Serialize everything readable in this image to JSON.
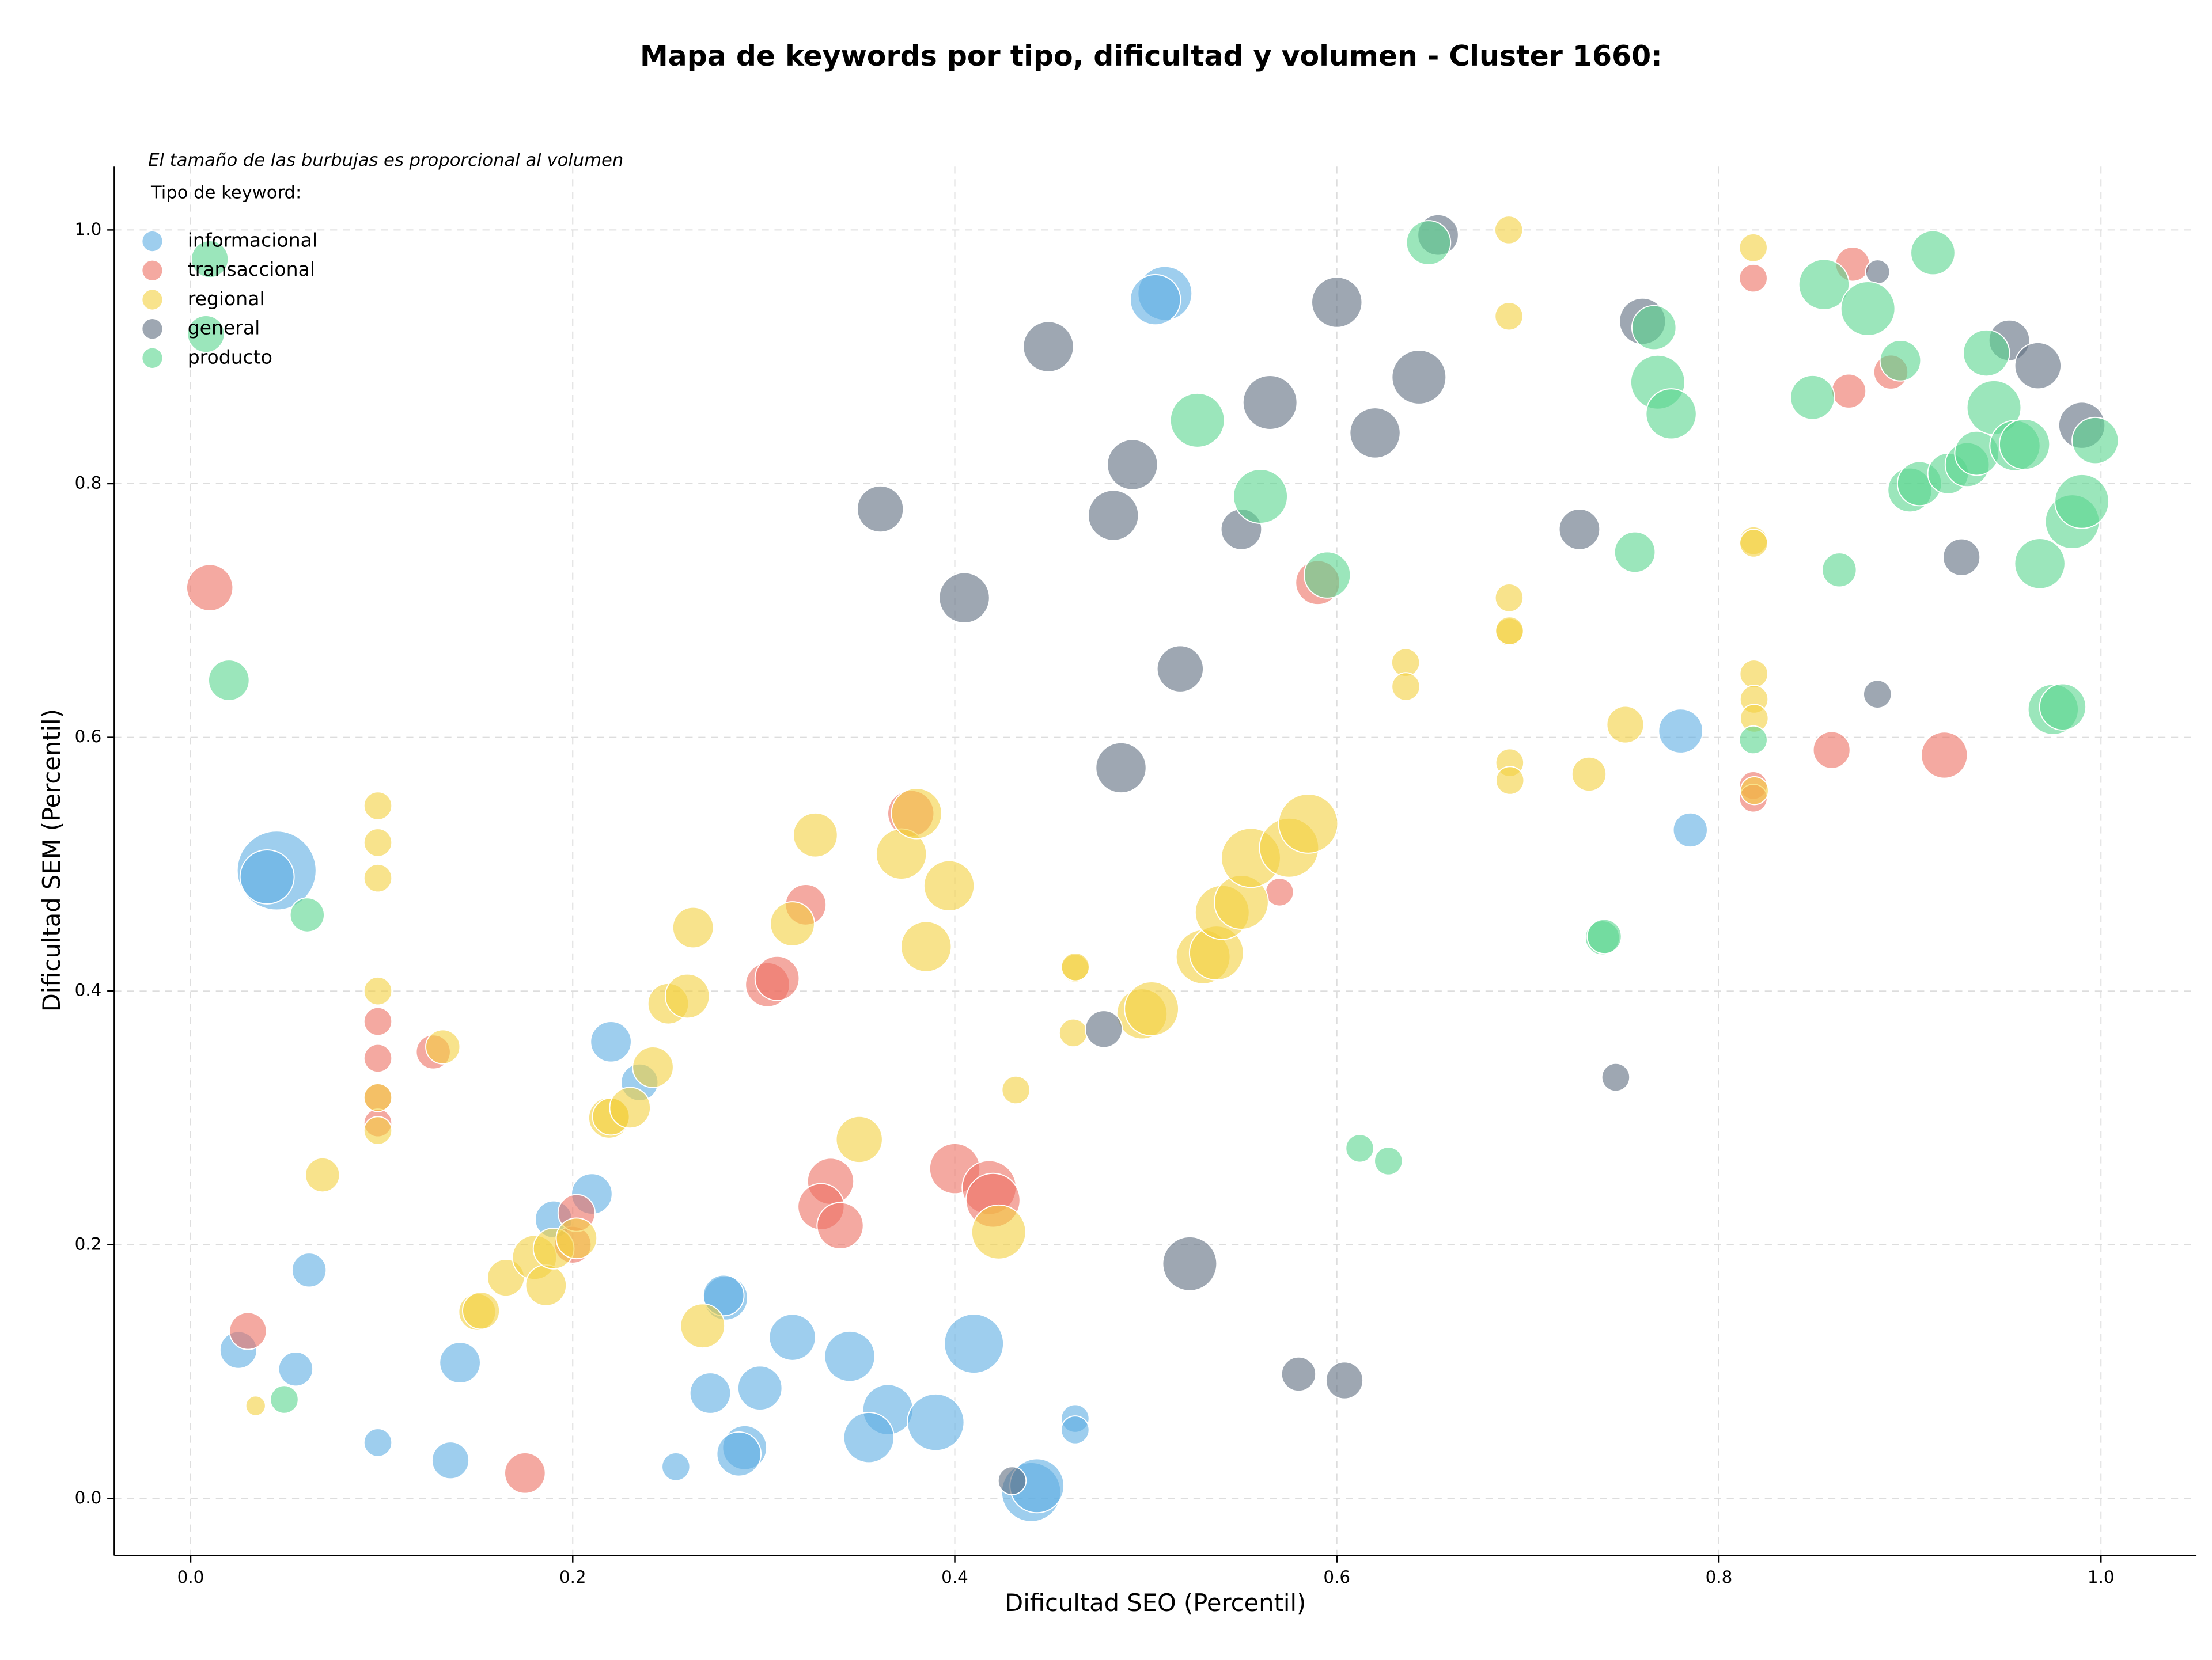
{
  "chart_data": {
    "type": "scatter",
    "title": "Mapa de keywords por tipo, dificultad y volumen - Cluster 1660:",
    "annotation": "El tamaño de las burbujas es proporcional al volumen",
    "legend_title": "Tipo de keyword:",
    "legend_position": "upper left",
    "xlabel": "Dificultad SEO (Percentil)",
    "ylabel": "Dificultad SEM (Percentil)",
    "xlim": [
      -0.04,
      1.05
    ],
    "ylim": [
      -0.045,
      1.05
    ],
    "xticks": [
      {
        "value": 0,
        "label": "0.0"
      },
      0.2,
      0.4,
      0.6,
      0.8,
      {
        "value": 1,
        "label": "1.0"
      }
    ],
    "yticks": [
      {
        "value": 0,
        "label": "0.0"
      },
      0.2,
      0.4,
      0.6,
      0.8,
      {
        "value": 1,
        "label": "1.0"
      }
    ],
    "grid": true,
    "series": [
      {
        "name": "informacional",
        "color": "#5dade2",
        "x": [
          0.045,
          0.04,
          0.51,
          0.505,
          0.78,
          0.785,
          0.22,
          0.235,
          0.21,
          0.19,
          0.062,
          0.025,
          0.055,
          0.141,
          0.098,
          0.136,
          0.254,
          0.28,
          0.279,
          0.315,
          0.345,
          0.41,
          0.272,
          0.298,
          0.29,
          0.287,
          0.365,
          0.355,
          0.39,
          0.44,
          0.443,
          0.463,
          0.463
        ],
        "y": [
          0.495,
          0.49,
          0.95,
          0.945,
          0.605,
          0.527,
          0.36,
          0.328,
          0.24,
          0.22,
          0.18,
          0.117,
          0.102,
          0.107,
          0.044,
          0.03,
          0.025,
          0.158,
          0.16,
          0.127,
          0.112,
          0.122,
          0.083,
          0.087,
          0.04,
          0.035,
          0.07,
          0.048,
          0.06,
          0.005,
          0.01,
          0.063,
          0.054
        ],
        "sizes": [
          64,
          30,
          30,
          26,
          20,
          12,
          17,
          14,
          17,
          14,
          12,
          14,
          12,
          17,
          8,
          14,
          8,
          20,
          17,
          22,
          26,
          36,
          17,
          20,
          20,
          20,
          26,
          26,
          33,
          36,
          30,
          8,
          8
        ]
      },
      {
        "name": "transaccional",
        "color": "#ec7063",
        "x": [
          0.01,
          0.03,
          0.098,
          0.098,
          0.098,
          0.098,
          0.127,
          0.175,
          0.2,
          0.202,
          0.302,
          0.307,
          0.322,
          0.377,
          0.335,
          0.33,
          0.34,
          0.4,
          0.418,
          0.42,
          0.57,
          0.59,
          0.818,
          0.818,
          0.818,
          0.859,
          0.918,
          0.87,
          0.868,
          0.89
        ],
        "y": [
          0.718,
          0.132,
          0.376,
          0.347,
          0.316,
          0.296,
          0.352,
          0.02,
          0.2,
          0.225,
          0.405,
          0.41,
          0.468,
          0.54,
          0.25,
          0.23,
          0.215,
          0.26,
          0.245,
          0.235,
          0.478,
          0.722,
          0.962,
          0.562,
          0.552,
          0.59,
          0.586,
          0.973,
          0.873,
          0.888
        ],
        "sizes": [
          22,
          14,
          8,
          8,
          8,
          8,
          12,
          17,
          14,
          14,
          20,
          20,
          17,
          22,
          22,
          22,
          22,
          26,
          30,
          30,
          8,
          20,
          8,
          8,
          8,
          14,
          22,
          12,
          12,
          12
        ]
      },
      {
        "name": "regional",
        "color": "#f4d03f",
        "x": [
          0.034,
          0.069,
          0.098,
          0.098,
          0.098,
          0.098,
          0.098,
          0.098,
          0.132,
          0.15,
          0.152,
          0.165,
          0.18,
          0.186,
          0.19,
          0.202,
          0.219,
          0.22,
          0.23,
          0.242,
          0.25,
          0.26,
          0.263,
          0.268,
          0.315,
          0.327,
          0.35,
          0.372,
          0.38,
          0.385,
          0.397,
          0.423,
          0.432,
          0.462,
          0.463,
          0.4631,
          0.498,
          0.503,
          0.53,
          0.537,
          0.54,
          0.55,
          0.555,
          0.575,
          0.585,
          0.636,
          0.6361,
          0.69,
          0.6901,
          0.6902,
          0.6903,
          0.6904,
          0.6905,
          0.6906,
          0.732,
          0.751,
          0.818,
          0.8181,
          0.8182,
          0.8183,
          0.8184,
          0.8185,
          0.8186
        ],
        "y": [
          0.073,
          0.255,
          0.546,
          0.517,
          0.489,
          0.4,
          0.316,
          0.29,
          0.356,
          0.147,
          0.148,
          0.174,
          0.19,
          0.168,
          0.197,
          0.205,
          0.3,
          0.301,
          0.308,
          0.34,
          0.39,
          0.396,
          0.45,
          0.136,
          0.453,
          0.523,
          0.283,
          0.508,
          0.54,
          0.435,
          0.483,
          0.21,
          0.322,
          0.367,
          0.418,
          0.419,
          0.382,
          0.386,
          0.427,
          0.43,
          0.462,
          0.47,
          0.505,
          0.513,
          0.532,
          0.659,
          0.64,
          1.0,
          0.932,
          0.71,
          0.683,
          0.684,
          0.58,
          0.566,
          0.571,
          0.61,
          0.986,
          0.755,
          0.753,
          0.65,
          0.63,
          0.615,
          0.558
        ],
        "sizes": [
          4,
          12,
          8,
          8,
          8,
          8,
          8,
          8,
          12,
          14,
          14,
          14,
          20,
          17,
          17,
          17,
          17,
          14,
          17,
          17,
          17,
          20,
          17,
          20,
          20,
          20,
          22,
          26,
          26,
          26,
          26,
          30,
          8,
          8,
          8,
          8,
          26,
          30,
          30,
          30,
          30,
          30,
          36,
          36,
          36,
          8,
          8,
          8,
          8,
          8,
          8,
          8,
          8,
          8,
          12,
          14,
          8,
          8,
          8,
          8,
          8,
          8,
          8
        ]
      },
      {
        "name": "general",
        "color": "#5d6d7e",
        "x": [
          0.361,
          0.405,
          0.449,
          0.483,
          0.493,
          0.487,
          0.518,
          0.55,
          0.565,
          0.6,
          0.62,
          0.643,
          0.653,
          0.478,
          0.523,
          0.58,
          0.604,
          0.43,
          0.727,
          0.746,
          0.76,
          0.883,
          0.8831,
          0.927,
          0.952,
          0.967,
          0.99
        ],
        "y": [
          0.78,
          0.71,
          0.908,
          0.775,
          0.815,
          0.576,
          0.654,
          0.764,
          0.864,
          0.943,
          0.84,
          0.884,
          0.996,
          0.37,
          0.185,
          0.098,
          0.093,
          0.014,
          0.764,
          0.332,
          0.928,
          0.634,
          0.967,
          0.742,
          0.913,
          0.893,
          0.846
        ],
        "sizes": [
          22,
          26,
          26,
          26,
          26,
          26,
          22,
          17,
          30,
          26,
          26,
          30,
          17,
          14,
          30,
          12,
          14,
          8,
          17,
          8,
          22,
          8,
          6,
          14,
          17,
          22,
          22
        ]
      },
      {
        "name": "producto",
        "color": "#58d68d",
        "x": [
          0.01,
          0.008,
          0.02,
          0.061,
          0.049,
          0.527,
          0.56,
          0.595,
          0.648,
          0.612,
          0.627,
          0.739,
          0.74,
          0.756,
          0.766,
          0.768,
          0.775,
          0.818,
          0.849,
          0.855,
          0.878,
          0.863,
          0.895,
          0.912,
          0.9,
          0.905,
          0.92,
          0.93,
          0.935,
          0.94,
          0.944,
          0.955,
          0.96,
          0.968,
          0.975,
          0.98,
          0.985,
          0.99,
          0.997
        ],
        "y": [
          0.977,
          0.918,
          0.645,
          0.46,
          0.078,
          0.85,
          0.79,
          0.728,
          0.99,
          0.276,
          0.266,
          0.442,
          0.443,
          0.746,
          0.923,
          0.88,
          0.855,
          0.598,
          0.868,
          0.957,
          0.938,
          0.732,
          0.897,
          0.982,
          0.795,
          0.8,
          0.808,
          0.815,
          0.824,
          0.903,
          0.86,
          0.83,
          0.831,
          0.737,
          0.622,
          0.624,
          0.77,
          0.786,
          0.834
        ],
        "sizes": [
          14,
          14,
          17,
          12,
          8,
          30,
          30,
          22,
          20,
          8,
          8,
          12,
          12,
          17,
          20,
          30,
          26,
          8,
          20,
          26,
          30,
          12,
          17,
          20,
          20,
          20,
          17,
          20,
          20,
          22,
          30,
          26,
          26,
          26,
          26,
          22,
          30,
          30,
          22
        ]
      }
    ]
  }
}
